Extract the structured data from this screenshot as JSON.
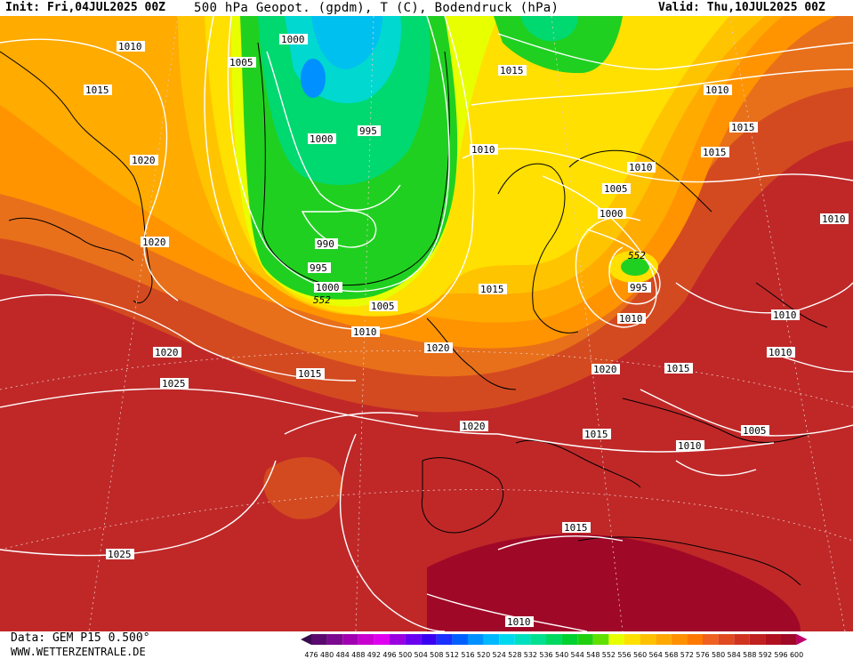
{
  "header": {
    "init": "Init: Fri,04JUL2025 00Z",
    "title": "500 hPa Geopot. (gpdm), T (C), Bodendruck (hPa)",
    "valid": "Valid: Thu,10JUL2025 00Z"
  },
  "footer": {
    "source": "Data: GEM P15 0.500°",
    "url": "WWW.WETTERZENTRALE.DE"
  },
  "legend": {
    "levels": [
      "476",
      "480",
      "484",
      "488",
      "492",
      "496",
      "500",
      "504",
      "508",
      "512",
      "516",
      "520",
      "524",
      "528",
      "532",
      "536",
      "540",
      "544",
      "548",
      "552",
      "556",
      "560",
      "564",
      "568",
      "572",
      "576",
      "580",
      "584",
      "588",
      "592",
      "596",
      "600"
    ],
    "colors": [
      "#3a0a4e",
      "#5a0a6e",
      "#7a0a8e",
      "#a000b0",
      "#c800d0",
      "#e000f0",
      "#9a00e0",
      "#6a00f0",
      "#3a00f0",
      "#1a30ff",
      "#0060ff",
      "#0090ff",
      "#00b8ff",
      "#00d8f0",
      "#00e0c0",
      "#00e090",
      "#00d860",
      "#00d030",
      "#20d010",
      "#60e000",
      "#e8ff00",
      "#ffe000",
      "#ffc000",
      "#ffa800",
      "#ff9000",
      "#ff7800",
      "#f06020",
      "#e04a20",
      "#d03420",
      "#c02020",
      "#b01020",
      "#a00828",
      "#c0006a"
    ]
  },
  "pressure_labels": [
    "1010",
    "1005",
    "1015",
    "1000",
    "995",
    "1020",
    "1000",
    "990",
    "995",
    "1000",
    "1005",
    "1010",
    "1015",
    "1020",
    "1025",
    "1020",
    "1025",
    "1015",
    "1010",
    "1010",
    "1015",
    "1015",
    "1010",
    "1005",
    "1000",
    "995",
    "1010",
    "1015",
    "1020",
    "1015",
    "1010",
    "1005",
    "1010",
    "1010",
    "1010",
    "1015",
    "1010",
    "1020"
  ],
  "geopotential_labels": [
    "552",
    "552"
  ]
}
